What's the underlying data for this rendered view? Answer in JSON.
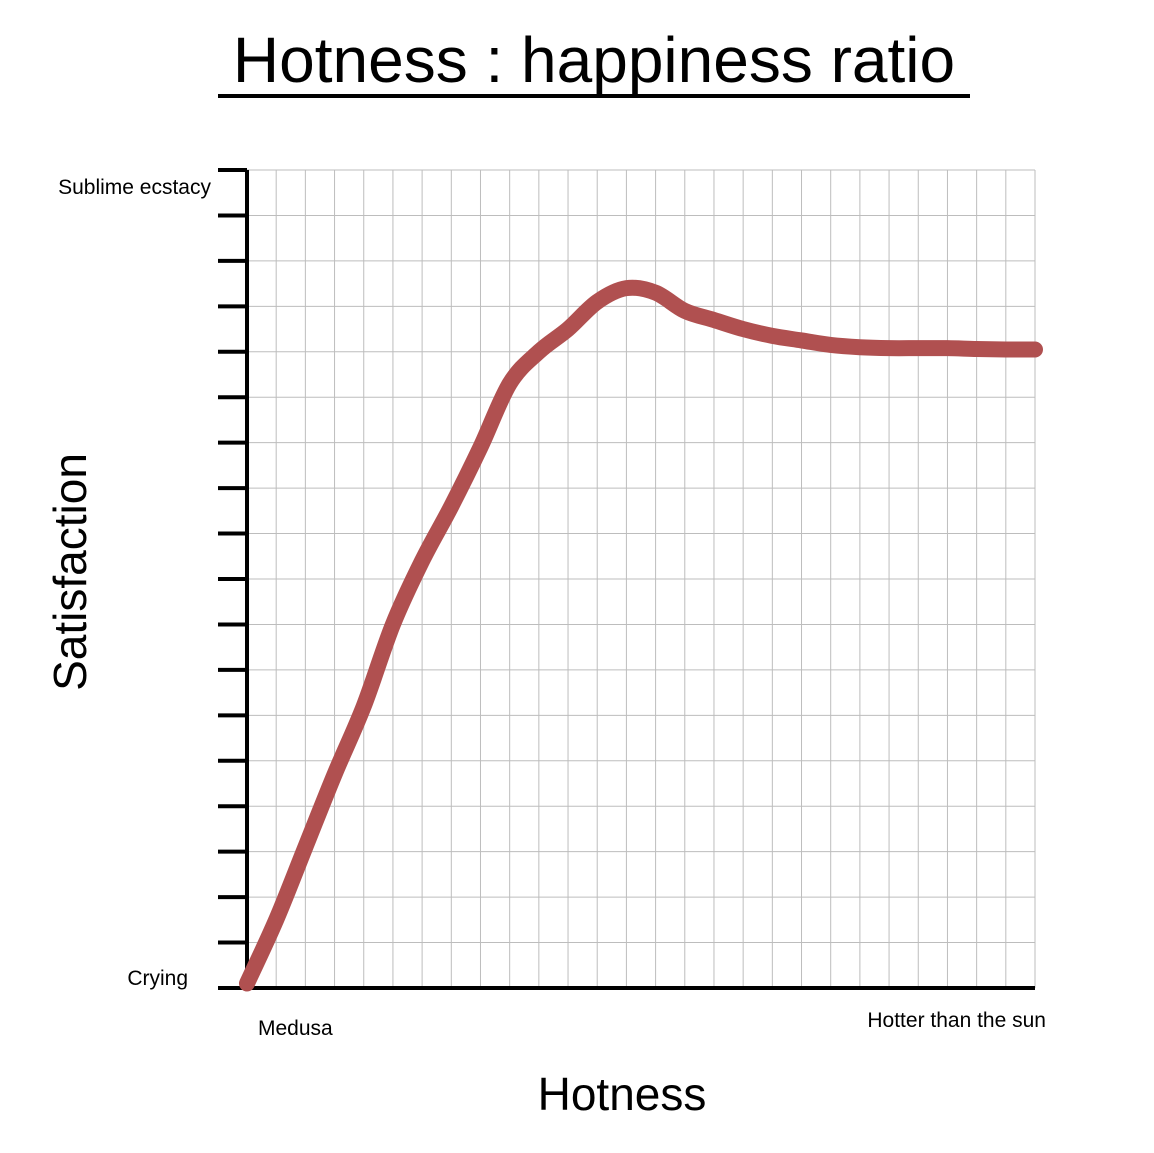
{
  "chart_data": {
    "type": "line",
    "title": "Hotness : happiness ratio",
    "xlabel": "Hotness",
    "ylabel": "Satisfaction",
    "x_end_labels": {
      "min": "Medusa",
      "max": "Hotter than the sun"
    },
    "y_end_labels": {
      "min": "Crying",
      "max": "Sublime ecstacy"
    },
    "xlim": [
      0,
      27
    ],
    "ylim": [
      0,
      18
    ],
    "grid": true,
    "series": [
      {
        "color": "#b05050",
        "x": [
          0,
          1,
          2,
          3,
          4,
          5,
          6,
          7,
          8,
          9,
          10,
          11,
          12,
          13,
          14,
          15,
          16,
          17,
          18,
          19,
          20,
          21,
          22,
          23,
          24,
          25,
          26,
          27
        ],
        "y": [
          0.1,
          1.5,
          3.1,
          4.7,
          6.2,
          8.0,
          9.4,
          10.6,
          11.9,
          13.3,
          14.0,
          14.5,
          15.1,
          15.4,
          15.3,
          14.9,
          14.7,
          14.5,
          14.35,
          14.25,
          14.15,
          14.1,
          14.08,
          14.08,
          14.08,
          14.06,
          14.05,
          14.05
        ]
      }
    ]
  }
}
